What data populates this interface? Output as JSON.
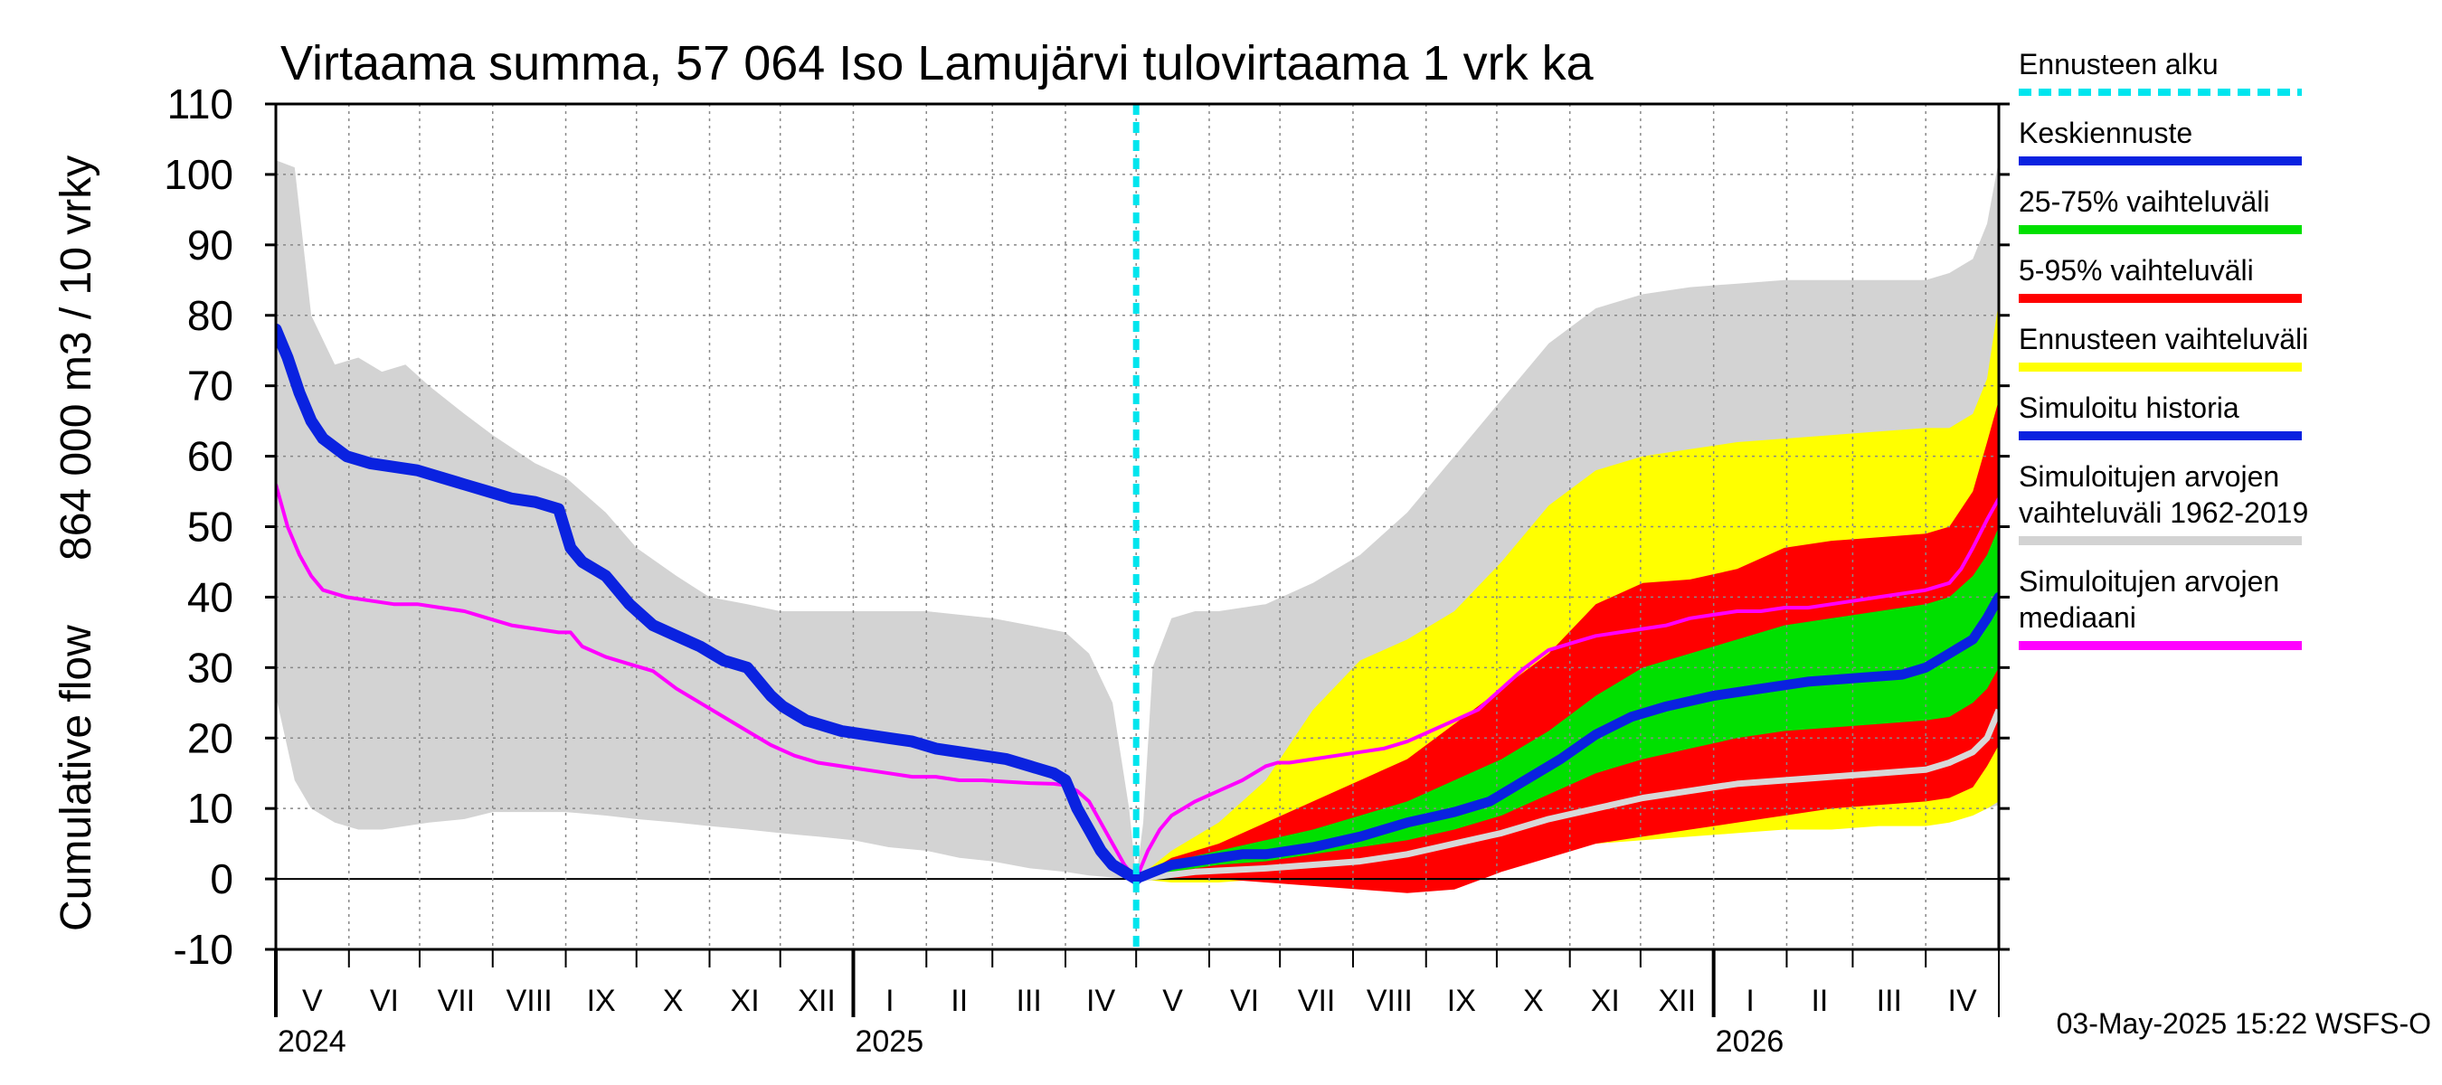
{
  "chart_data": {
    "type": "area",
    "title": "Virtaama summa, 57 064 Iso Lamujärvi tulovirtaama 1 vrk ka",
    "ylabel_line1": "Cumulative flow",
    "ylabel_line2": "864 000 m3 / 10 vrky",
    "ylim": [
      -10,
      110
    ],
    "yticks": [
      -10,
      0,
      10,
      20,
      30,
      40,
      50,
      60,
      70,
      80,
      90,
      100,
      110
    ],
    "x_range_days": [
      0,
      731
    ],
    "forecast_start_day": 365,
    "grid": true,
    "legend_position": "right",
    "months": [
      {
        "label": "V",
        "start": 0,
        "end": 31
      },
      {
        "label": "VI",
        "start": 31,
        "end": 61
      },
      {
        "label": "VII",
        "start": 61,
        "end": 92
      },
      {
        "label": "VIII",
        "start": 92,
        "end": 123
      },
      {
        "label": "IX",
        "start": 123,
        "end": 153
      },
      {
        "label": "X",
        "start": 153,
        "end": 184
      },
      {
        "label": "XI",
        "start": 184,
        "end": 214
      },
      {
        "label": "XII",
        "start": 214,
        "end": 245
      },
      {
        "label": "I",
        "start": 245,
        "end": 276
      },
      {
        "label": "II",
        "start": 276,
        "end": 304
      },
      {
        "label": "III",
        "start": 304,
        "end": 335
      },
      {
        "label": "IV",
        "start": 335,
        "end": 365
      },
      {
        "label": "V",
        "start": 365,
        "end": 396
      },
      {
        "label": "VI",
        "start": 396,
        "end": 426
      },
      {
        "label": "VII",
        "start": 426,
        "end": 457
      },
      {
        "label": "VIII",
        "start": 457,
        "end": 488
      },
      {
        "label": "IX",
        "start": 488,
        "end": 518
      },
      {
        "label": "X",
        "start": 518,
        "end": 549
      },
      {
        "label": "XI",
        "start": 549,
        "end": 579
      },
      {
        "label": "XII",
        "start": 579,
        "end": 610
      },
      {
        "label": "I",
        "start": 610,
        "end": 641
      },
      {
        "label": "II",
        "start": 641,
        "end": 669
      },
      {
        "label": "III",
        "start": 669,
        "end": 700
      },
      {
        "label": "IV",
        "start": 700,
        "end": 731
      }
    ],
    "years": [
      {
        "label": "2024",
        "day": 0
      },
      {
        "label": "2025",
        "day": 245
      },
      {
        "label": "2026",
        "day": 610
      }
    ],
    "legend": [
      {
        "label": "Ennusteen alku",
        "color": "#00e5ee",
        "style": "dashed"
      },
      {
        "label": "Keskiennuste",
        "color": "#0a22e0",
        "style": "solid"
      },
      {
        "label": "25-75% vaihteluväli",
        "color": "#00e000",
        "style": "solid"
      },
      {
        "label": "5-95% vaihteluväli",
        "color": "#ff0000",
        "style": "solid"
      },
      {
        "label": "Ennusteen vaihteluväli",
        "color": "#ffff00",
        "style": "solid"
      },
      {
        "label": "Simuloitu historia",
        "color": "#0a22e0",
        "style": "solid"
      },
      {
        "label": "Simuloitujen arvojen\nvaihteluväli 1962-2019",
        "color": "#d3d3d3",
        "style": "solid"
      },
      {
        "label": "Simuloitujen arvojen\nmediaani",
        "color": "#ff00ff",
        "style": "solid"
      }
    ],
    "series": {
      "hist_range": {
        "color": "#d3d3d3",
        "x": [
          0,
          8,
          15,
          25,
          35,
          45,
          55,
          65,
          80,
          92,
          110,
          123,
          140,
          153,
          170,
          184,
          200,
          214,
          230,
          245,
          260,
          276,
          290,
          304,
          320,
          335,
          345,
          355,
          362,
          365,
          368,
          372,
          380,
          390,
          400,
          420,
          440,
          460,
          480,
          500,
          520,
          540,
          560,
          580,
          600,
          620,
          640,
          660,
          680,
          700,
          710,
          720,
          726,
          731
        ],
        "upper": [
          102,
          101,
          80,
          73,
          74,
          72,
          73,
          70,
          66,
          63,
          59,
          57,
          52,
          47,
          43,
          40,
          39,
          38,
          38,
          38,
          38,
          38,
          37.5,
          37,
          36,
          35,
          32,
          25,
          10,
          0,
          8,
          30,
          37,
          38,
          38,
          39,
          42,
          46,
          52,
          60,
          68,
          76,
          81,
          83,
          84,
          84.5,
          85,
          85,
          85,
          85,
          86,
          88,
          93,
          102
        ],
        "lower": [
          26,
          14,
          10,
          8,
          7,
          7,
          7.5,
          8,
          8.5,
          9.5,
          9.5,
          9.5,
          9,
          8.5,
          8,
          7.5,
          7,
          6.5,
          6,
          5.5,
          4.5,
          4,
          3,
          2.5,
          1.5,
          1,
          0.5,
          0.2,
          0,
          0,
          0,
          0.5,
          1,
          1.2,
          1.5,
          2,
          2.5,
          3,
          3.5,
          4,
          4.5,
          5,
          5.5,
          6,
          6.5,
          7,
          7.5,
          8,
          8.5,
          9,
          9.3,
          9.7,
          10,
          10.5
        ]
      },
      "forecast_range": {
        "color": "#ffff00",
        "x": [
          365,
          380,
          400,
          420,
          440,
          460,
          480,
          500,
          520,
          540,
          560,
          580,
          600,
          620,
          640,
          660,
          680,
          700,
          710,
          720,
          726,
          731
        ],
        "upper": [
          0,
          4,
          8,
          14,
          24,
          31,
          34,
          38,
          45,
          53,
          58,
          60,
          61,
          62,
          62.5,
          63,
          63.5,
          64,
          64,
          66,
          71,
          82
        ],
        "lower": [
          0,
          -0.5,
          -0.5,
          0,
          0.5,
          1.5,
          2.5,
          3,
          4,
          4.5,
          5,
          5.5,
          6,
          6.5,
          7,
          7,
          7.5,
          7.5,
          8,
          9,
          10,
          11
        ]
      },
      "p5_95": {
        "color": "#ff0000",
        "x": [
          365,
          380,
          400,
          420,
          440,
          460,
          480,
          500,
          520,
          540,
          560,
          580,
          600,
          620,
          640,
          660,
          680,
          700,
          710,
          720,
          726,
          731
        ],
        "upper": [
          0,
          3,
          5,
          8,
          11,
          14,
          17,
          22,
          27,
          32,
          39,
          42,
          42.5,
          44,
          47,
          48,
          48.5,
          49,
          50,
          55,
          62,
          68
        ],
        "lower": [
          0,
          0,
          0,
          -0.5,
          -1,
          -1.5,
          -2,
          -1.5,
          1,
          3,
          5,
          6,
          7,
          8,
          9,
          10,
          10.5,
          11,
          11.5,
          13,
          16,
          19
        ]
      },
      "p25_75": {
        "color": "#00e000",
        "x": [
          365,
          380,
          400,
          420,
          440,
          460,
          480,
          500,
          520,
          540,
          560,
          580,
          600,
          620,
          640,
          660,
          680,
          700,
          710,
          720,
          726,
          731
        ],
        "upper": [
          0,
          2.5,
          4,
          5.5,
          7,
          9,
          11,
          14,
          17,
          21,
          26,
          30,
          32,
          34,
          36,
          37,
          38,
          39,
          40,
          43,
          46,
          50
        ],
        "lower": [
          0,
          1,
          2,
          2.5,
          3.5,
          4.5,
          5.5,
          7,
          9,
          12,
          15,
          17,
          18.5,
          20,
          21,
          21.5,
          22,
          22.5,
          23,
          25,
          27,
          30
        ]
      },
      "mean_forecast": {
        "color": "#0a22e0",
        "x": [
          365,
          380,
          400,
          410,
          420,
          440,
          460,
          480,
          500,
          515,
          530,
          545,
          560,
          575,
          590,
          610,
          630,
          650,
          670,
          690,
          700,
          710,
          720,
          726,
          731
        ],
        "values": [
          0,
          2,
          3,
          3.5,
          3.5,
          4.5,
          6,
          8,
          9.5,
          11,
          14,
          17,
          20.5,
          23,
          24.5,
          26,
          27,
          28,
          28.5,
          29,
          30,
          32,
          34,
          37,
          40
        ]
      },
      "sim_history": {
        "color": "#0a22e0",
        "x": [
          0,
          5,
          10,
          15,
          20,
          30,
          40,
          50,
          60,
          70,
          80,
          90,
          100,
          110,
          120,
          125,
          130,
          140,
          150,
          160,
          170,
          180,
          190,
          200,
          210,
          215,
          220,
          225,
          230,
          240,
          250,
          260,
          270,
          280,
          290,
          300,
          310,
          320,
          330,
          335,
          340,
          345,
          350,
          355,
          360,
          365
        ],
        "values": [
          78,
          74,
          69,
          65,
          62.5,
          60,
          59,
          58.5,
          58,
          57,
          56,
          55,
          54,
          53.5,
          52.5,
          47,
          45,
          43,
          39,
          36,
          34.5,
          33,
          31,
          30,
          26,
          24.5,
          23.5,
          22.5,
          22,
          21,
          20.5,
          20,
          19.5,
          18.5,
          18,
          17.5,
          17,
          16,
          15,
          14,
          10,
          7,
          4,
          2,
          1,
          0
        ]
      },
      "hist_median": {
        "color": "#ff00ff",
        "x": [
          0,
          5,
          10,
          15,
          20,
          30,
          40,
          50,
          60,
          70,
          80,
          90,
          100,
          110,
          120,
          125,
          130,
          140,
          150,
          160,
          170,
          180,
          190,
          200,
          210,
          220,
          230,
          240,
          250,
          260,
          270,
          280,
          290,
          300,
          310,
          320,
          330,
          335,
          340,
          345,
          350,
          355,
          360,
          365,
          370,
          375,
          380,
          390,
          400,
          410,
          420,
          425,
          430,
          440,
          450,
          460,
          470,
          480,
          490,
          500,
          510,
          520,
          530,
          540,
          550,
          560,
          570,
          580,
          590,
          600,
          610,
          620,
          630,
          640,
          650,
          660,
          670,
          680,
          690,
          700,
          710,
          715,
          720,
          726,
          731
        ],
        "values": [
          56,
          50,
          46,
          43,
          41,
          40,
          39.5,
          39,
          39,
          38.5,
          38,
          37,
          36,
          35.5,
          35,
          35,
          33,
          31.5,
          30.5,
          29.5,
          27,
          25,
          23,
          21,
          19,
          17.5,
          16.5,
          16,
          15.5,
          15,
          14.5,
          14.5,
          14,
          14,
          13.8,
          13.6,
          13.5,
          13.3,
          12.5,
          11,
          8,
          5,
          2,
          0,
          4,
          7,
          9,
          11,
          12.5,
          14,
          16,
          16.5,
          16.5,
          17,
          17.5,
          18,
          18.5,
          19.5,
          21,
          22.5,
          24,
          27,
          30,
          32.5,
          33.5,
          34.5,
          35,
          35.5,
          36,
          37,
          37.5,
          38,
          38,
          38.5,
          38.5,
          39,
          39.5,
          40,
          40.5,
          41,
          42,
          44,
          47,
          51,
          54
        ]
      },
      "hist_median_forecast_period": {
        "color": "#d8d8d8",
        "x": [
          365,
          390,
          420,
          440,
          460,
          480,
          500,
          520,
          540,
          560,
          580,
          600,
          620,
          640,
          660,
          680,
          700,
          710,
          720,
          726,
          731
        ],
        "values": [
          0,
          1,
          1.5,
          2,
          2.5,
          3.5,
          5,
          6.5,
          8.5,
          10,
          11.5,
          12.5,
          13.5,
          14,
          14.5,
          15,
          15.5,
          16.5,
          18,
          20,
          24
        ]
      }
    }
  },
  "footer": "03-May-2025 15:22 WSFS-O"
}
